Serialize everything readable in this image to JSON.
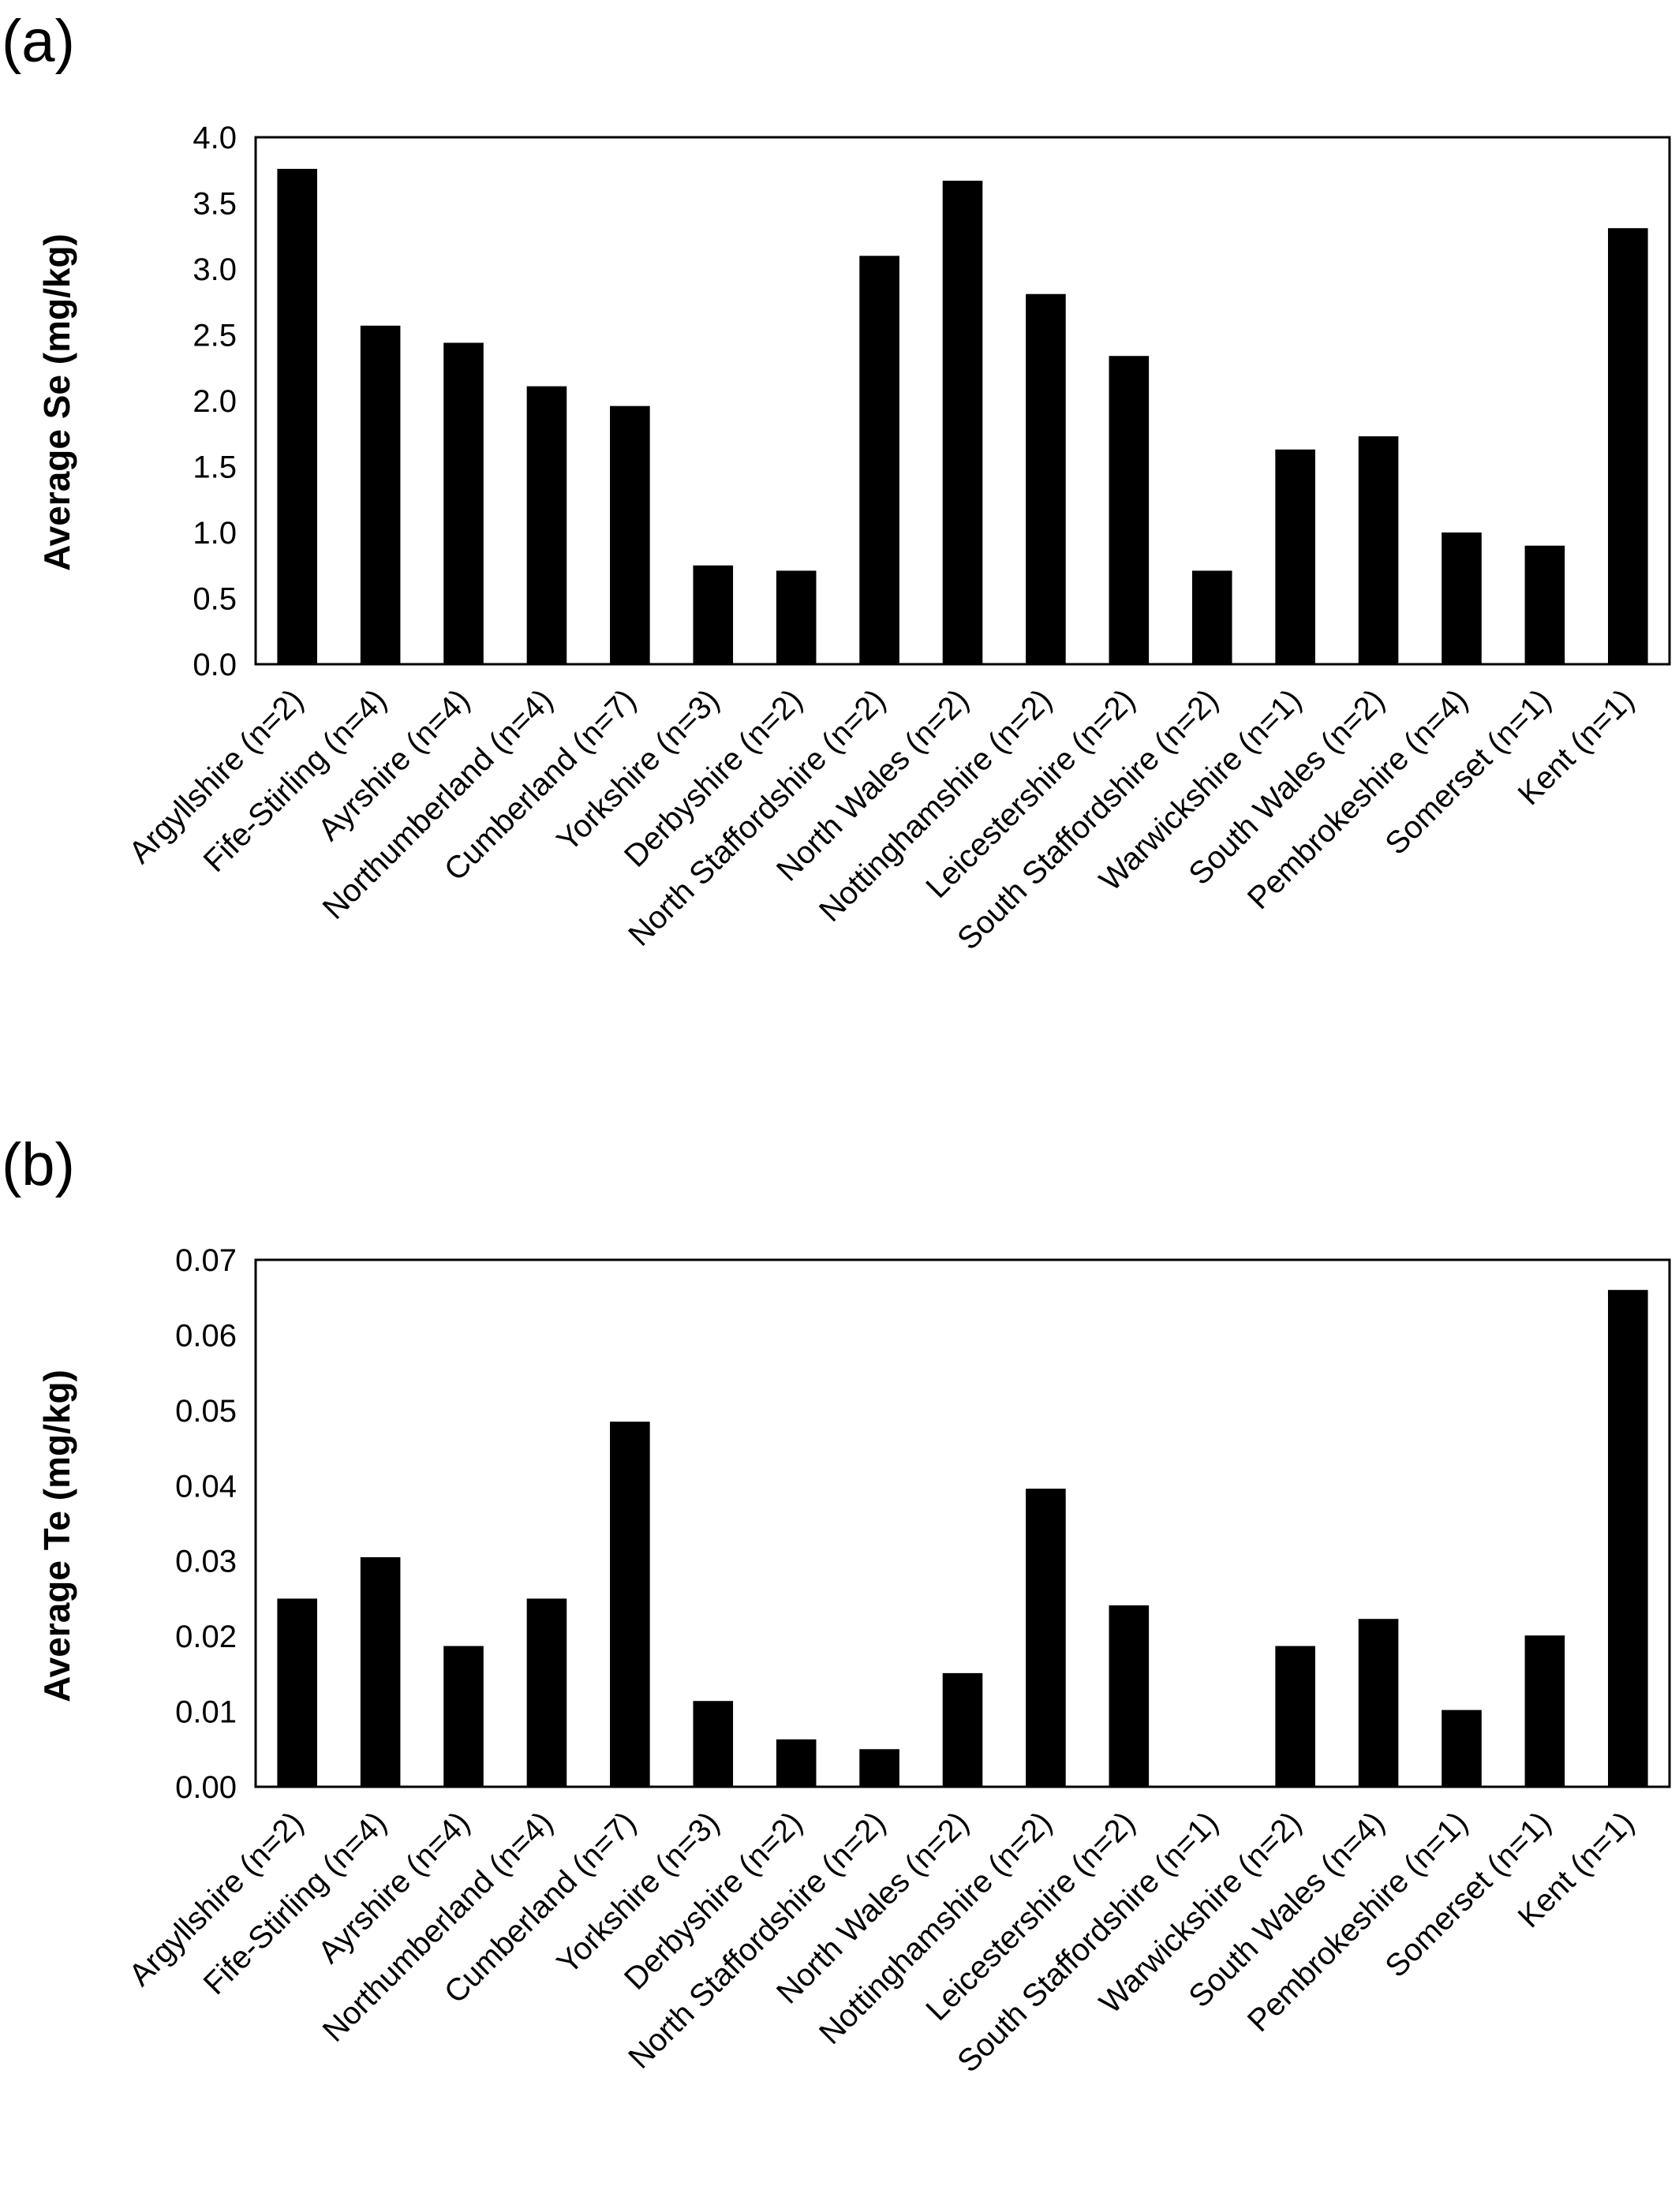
{
  "chart_data": [
    {
      "type": "bar",
      "panel_label": "(a)",
      "categories": [
        "Argyllshire (n=2)",
        "Fife-Stirling (n=4)",
        "Ayrshire (n=4)",
        "Northumberland (n=4)",
        "Cumberland (n=7)",
        "Yorkshire (n=3)",
        "Derbyshire (n=2)",
        "North Staffordshire (n=2)",
        "North Wales (n=2)",
        "Nottinghamshire (n=2)",
        "Leicestershire (n=2)",
        "South Staffordshire (n=2)",
        "Warwickshire (n=1)",
        "South Wales (n=2)",
        "Pembrokeshire (n=4)",
        "Somerset (n=1)",
        "Kent (n=1)"
      ],
      "values": [
        3.76,
        2.57,
        2.44,
        2.11,
        1.96,
        0.75,
        0.71,
        3.1,
        3.67,
        2.81,
        2.34,
        0.71,
        1.63,
        1.73,
        1.0,
        0.9,
        3.31
      ],
      "ylabel": "Average Se (mg/kg)",
      "ylim": [
        0,
        4
      ],
      "yticks": [
        "0.0",
        "0.5",
        "1.0",
        "1.5",
        "2.0",
        "2.5",
        "3.0",
        "3.5",
        "4.0"
      ],
      "bar_color": "#000000",
      "grid": false
    },
    {
      "type": "bar",
      "panel_label": "(b)",
      "categories": [
        "Argyllshire (n=2)",
        "Fife-Stirling (n=4)",
        "Ayrshire (n=4)",
        "Northumberland (n=4)",
        "Cumberland (n=7)",
        "Yorkshire (n=3)",
        "Derbyshire (n=2)",
        "North Staffordshire (n=2)",
        "North Wales (n=2)",
        "Nottinghamshire (n=2)",
        "Leicestershire (n=2)",
        "South Staffordshire (n=1)",
        "Warwickshire (n=2)",
        "South Wales (n=4)",
        "Pembrokeshire (n=1)",
        "Somerset (n=1)",
        "Kent (n=1)"
      ],
      "values": [
        0.025,
        0.0305,
        0.0187,
        0.025,
        0.0485,
        0.0114,
        0.0063,
        0.005,
        0.0151,
        0.0396,
        0.0241,
        0,
        0.0187,
        0.0223,
        0.0102,
        0.0201,
        0.066
      ],
      "ylabel": "Average Te (mg/kg)",
      "ylim": [
        0,
        0.07
      ],
      "yticks": [
        "0.00",
        "0.01",
        "0.02",
        "0.03",
        "0.04",
        "0.05",
        "0.06",
        "0.07"
      ],
      "bar_color": "#000000",
      "grid": false
    }
  ]
}
